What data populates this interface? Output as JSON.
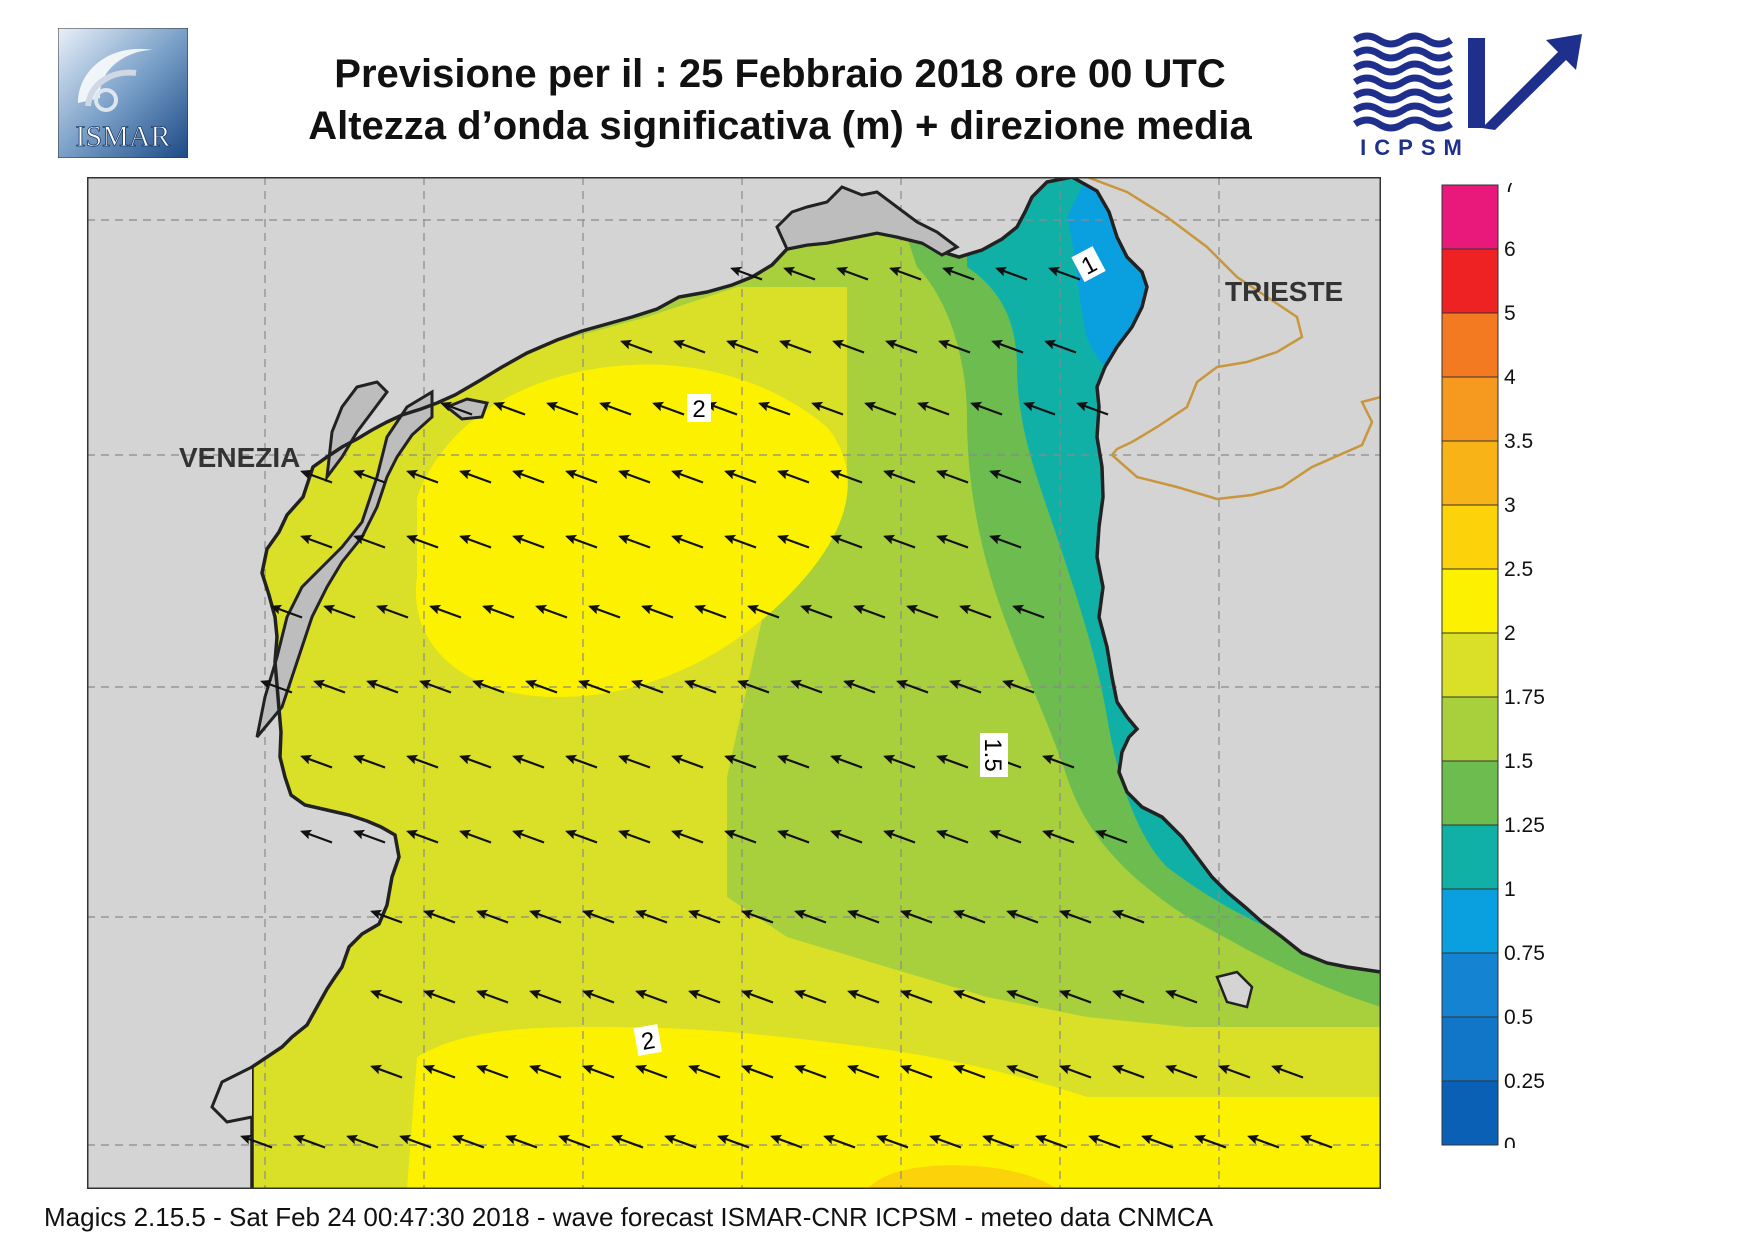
{
  "header": {
    "title_line1": "Previsione per il  :  25  Febbraio 2018   ore 00 UTC",
    "title_line2": "Altezza d’onda significativa (m) + direzione media"
  },
  "logos": {
    "left": {
      "text": "ISMAR",
      "icon": "ismar-logo-icon"
    },
    "right": {
      "text": "ICPSM",
      "icon": "icpsm-logo-icon"
    }
  },
  "map": {
    "cities": [
      {
        "name": "VENEZIA"
      },
      {
        "name": "TRIESTE"
      }
    ],
    "contour_labels": [
      "1",
      "2",
      "1.5",
      "2"
    ],
    "colors": {
      "land": "#d4d4d4",
      "coast": "#222222",
      "border": "#c8963c",
      "arrow": "#111111"
    }
  },
  "legend": {
    "ticks": [
      "7",
      "6",
      "5",
      "4",
      "3.5",
      "3",
      "2.5",
      "2",
      "1.75",
      "1.5",
      "1.25",
      "1",
      "0.75",
      "0.5",
      "0.25",
      "0"
    ],
    "colors": [
      "#e8197a",
      "#ee2222",
      "#f47a22",
      "#f59a1e",
      "#f8b316",
      "#fcd20a",
      "#fcf200",
      "#dadf28",
      "#a8cf3c",
      "#6cbc50",
      "#10b0a6",
      "#0aa0e0",
      "#1484d2",
      "#1276c8",
      "#0a60b4"
    ]
  },
  "footer": {
    "text": "Magics 2.15.5 - Sat Feb 24 00:47:30 2018 - wave forecast  ISMAR-CNR  ICPSM - meteo data    CNMCA"
  }
}
